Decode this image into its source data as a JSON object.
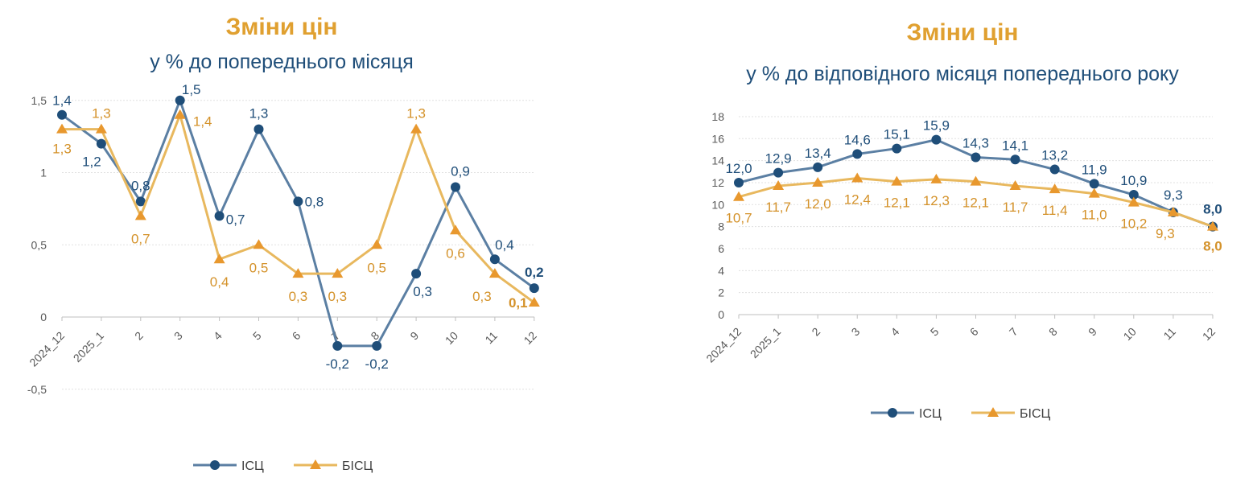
{
  "colors": {
    "cpi_line": "#5B7FA3",
    "cpi_marker": "#1F4E79",
    "cpi_label": "#1F4E79",
    "core_line": "#E8B85E",
    "core_marker": "#E8982E",
    "core_label": "#D4922A",
    "title": "#E0A030"
  },
  "chart_data": [
    {
      "type": "line",
      "title": "Зміни цін",
      "subtitle": "у % до попереднього місяця",
      "categories": [
        "2024_12",
        "2025_1",
        "2",
        "3",
        "4",
        "5",
        "6",
        "7",
        "8",
        "9",
        "10",
        "11",
        "12"
      ],
      "yticks": [
        "1,5",
        "1",
        "0,5",
        "0",
        "-0,5"
      ],
      "ylim": [
        -0.5,
        1.5
      ],
      "grid": true,
      "legend": "bottom",
      "series": [
        {
          "name": "ІСЦ",
          "marker": "circle",
          "values": [
            1.4,
            1.2,
            0.8,
            1.5,
            0.7,
            1.3,
            0.8,
            -0.2,
            -0.2,
            0.3,
            0.9,
            0.4,
            0.2
          ]
        },
        {
          "name": "БІСЦ",
          "marker": "triangle",
          "values": [
            1.3,
            1.3,
            0.7,
            1.4,
            0.4,
            0.5,
            0.3,
            0.3,
            0.5,
            1.3,
            0.6,
            0.3,
            0.1
          ]
        }
      ]
    },
    {
      "type": "line",
      "title": "Зміни цін",
      "subtitle": "у % до відповідного місяця попереднього року",
      "categories": [
        "2024_12",
        "2025_1",
        "2",
        "3",
        "4",
        "5",
        "6",
        "7",
        "8",
        "9",
        "10",
        "11",
        "12"
      ],
      "yticks": [
        "18",
        "16",
        "14",
        "12",
        "10",
        "8",
        "6",
        "4",
        "2",
        "0"
      ],
      "ylim": [
        0,
        18
      ],
      "grid": true,
      "legend": "bottom",
      "series": [
        {
          "name": "ІСЦ",
          "marker": "circle",
          "values": [
            12.0,
            12.9,
            13.4,
            14.6,
            15.1,
            15.9,
            14.3,
            14.1,
            13.2,
            11.9,
            10.9,
            9.3,
            8.0
          ]
        },
        {
          "name": "БІСЦ",
          "marker": "triangle",
          "values": [
            10.7,
            11.7,
            12.0,
            12.4,
            12.1,
            12.3,
            12.1,
            11.7,
            11.4,
            11.0,
            10.2,
            9.3,
            8.0
          ]
        }
      ]
    }
  ]
}
